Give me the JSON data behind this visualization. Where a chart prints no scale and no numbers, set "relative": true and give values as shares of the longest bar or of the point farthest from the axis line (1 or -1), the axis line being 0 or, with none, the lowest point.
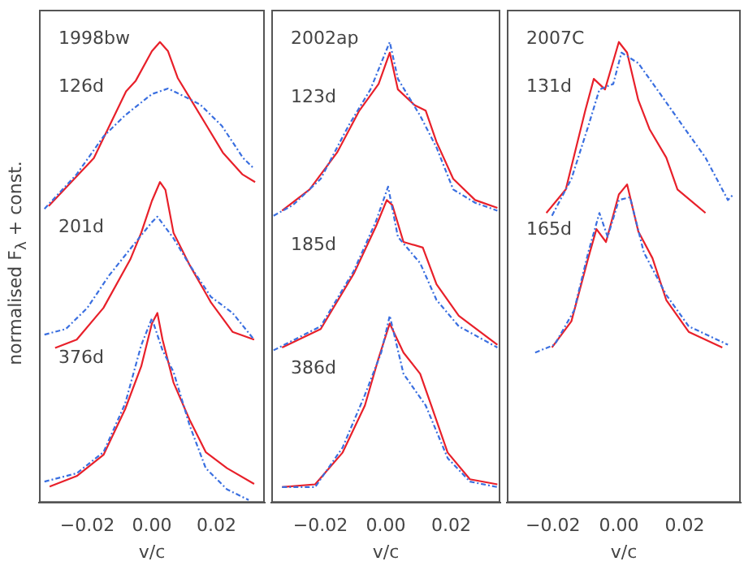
{
  "chart_data": [
    {
      "type": "line",
      "relative": true,
      "ylabel": "normalised F$_{λ}$ + const.",
      "xlabel": "v/c",
      "xlim": [
        -0.035,
        0.035
      ],
      "xticks": [
        {
          "value": -0.02,
          "label": "−0.02"
        },
        {
          "value": 0,
          "label": "0.00"
        },
        {
          "value": 0.02,
          "label": "0.02"
        }
      ],
      "grid": false,
      "legend": false,
      "marker": "none",
      "annotations": [
        "1998bw",
        "126d",
        "201d",
        "376d"
      ],
      "series": [
        {
          "color": "#e8202a",
          "line_style": "solid",
          "x": [
            -0.032,
            -0.018,
            -0.008,
            -0.005,
            0,
            0.0025,
            0.005,
            0.008,
            0.012,
            0.017,
            0.022,
            0.028,
            0.032
          ],
          "values": [
            0.644,
            0.748,
            0.893,
            0.916,
            0.98,
            1.0,
            0.98,
            0.922,
            0.876,
            0.818,
            0.76,
            0.713,
            0.696
          ]
        },
        {
          "color": "#3a6fe0",
          "line_style": "dashdot",
          "x": [
            -0.0333,
            -0.0233,
            -0.015,
            -0.0083,
            0,
            0.005,
            0.01,
            0.015,
            0.0217,
            0.0283,
            0.0317
          ],
          "values": [
            0.638,
            0.713,
            0.795,
            0.841,
            0.887,
            0.899,
            0.882,
            0.864,
            0.818,
            0.748,
            0.725
          ]
        },
        {
          "color": "#e8202a",
          "line_style": "solid",
          "x": [
            -0.03,
            -0.0233,
            -0.015,
            -0.0067,
            -0.0033,
            0,
            0.0025,
            0.0042,
            0.0067,
            0.0117,
            0.0183,
            0.025,
            0.0317
          ],
          "values": [
            0.336,
            0.354,
            0.423,
            0.528,
            0.586,
            0.655,
            0.696,
            0.679,
            0.586,
            0.516,
            0.435,
            0.371,
            0.354
          ]
        },
        {
          "color": "#3a6fe0",
          "line_style": "dashdot",
          "x": [
            -0.0333,
            -0.0267,
            -0.02,
            -0.0133,
            -0.0067,
            0,
            0.0017,
            0.0067,
            0.0117,
            0.0183,
            0.025,
            0.0317
          ],
          "values": [
            0.365,
            0.377,
            0.423,
            0.493,
            0.551,
            0.609,
            0.621,
            0.574,
            0.516,
            0.447,
            0.412,
            0.354
          ]
        },
        {
          "color": "#e8202a",
          "line_style": "solid",
          "x": [
            -0.0317,
            -0.0233,
            -0.015,
            -0.0083,
            -0.0033,
            0,
            0.0017,
            0.0033,
            0.0067,
            0.0117,
            0.0167,
            0.0233,
            0.0317
          ],
          "values": [
            0.035,
            0.058,
            0.104,
            0.203,
            0.296,
            0.389,
            0.412,
            0.354,
            0.261,
            0.18,
            0.11,
            0.075,
            0.041
          ]
        },
        {
          "color": "#3a6fe0",
          "line_style": "dashdot",
          "x": [
            -0.0333,
            -0.0233,
            -0.015,
            -0.0083,
            -0.0033,
            0,
            0.0033,
            0.0067,
            0.0117,
            0.0167,
            0.0233,
            0.03
          ],
          "values": [
            0.046,
            0.064,
            0.11,
            0.215,
            0.342,
            0.4,
            0.331,
            0.284,
            0.168,
            0.075,
            0.029,
            0.006
          ]
        }
      ]
    },
    {
      "type": "line",
      "relative": true,
      "xlabel": "v/c",
      "xlim": [
        -0.035,
        0.035
      ],
      "xticks": [
        {
          "value": -0.02,
          "label": "−0.02"
        },
        {
          "value": 0,
          "label": "0.00"
        },
        {
          "value": 0.02,
          "label": "0.02"
        }
      ],
      "grid": false,
      "legend": false,
      "marker": "none",
      "annotations": [
        "2002ap",
        "123d",
        "185d",
        "386d"
      ],
      "series": [
        {
          "color": "#e8202a",
          "line_style": "solid",
          "x": [
            -0.0317,
            -0.0233,
            -0.0149,
            -0.0081,
            -0.0022,
            0.0012,
            0.0037,
            0.0088,
            0.0122,
            0.0155,
            0.0206,
            0.0273,
            0.0341
          ],
          "values": [
            0.634,
            0.68,
            0.76,
            0.851,
            0.909,
            0.977,
            0.897,
            0.863,
            0.851,
            0.783,
            0.703,
            0.657,
            0.64
          ]
        },
        {
          "color": "#3a6fe0",
          "line_style": "dashdot",
          "x": [
            -0.0343,
            -0.0284,
            -0.0199,
            -0.0115,
            -0.0047,
            0.0012,
            0.0037,
            0.0105,
            0.0155,
            0.0206,
            0.0273,
            0.0341
          ],
          "values": [
            0.623,
            0.646,
            0.703,
            0.817,
            0.897,
            1.0,
            0.92,
            0.84,
            0.771,
            0.68,
            0.651,
            0.634
          ]
        },
        {
          "color": "#e8202a",
          "line_style": "solid",
          "x": [
            -0.0317,
            -0.0199,
            -0.0098,
            -0.003,
            0.0003,
            0.002,
            0.0054,
            0.0113,
            0.0155,
            0.0223,
            0.0341
          ],
          "values": [
            0.337,
            0.377,
            0.497,
            0.6,
            0.657,
            0.646,
            0.566,
            0.554,
            0.474,
            0.406,
            0.343
          ]
        },
        {
          "color": "#3a6fe0",
          "line_style": "dashdot",
          "x": [
            -0.0343,
            -0.0199,
            -0.0098,
            -0.003,
            0.0007,
            0.0037,
            0.0105,
            0.0155,
            0.0223,
            0.0341
          ],
          "values": [
            0.331,
            0.383,
            0.503,
            0.611,
            0.686,
            0.577,
            0.52,
            0.44,
            0.383,
            0.337
          ]
        },
        {
          "color": "#e8202a",
          "line_style": "solid",
          "x": [
            -0.0317,
            -0.0216,
            -0.0132,
            -0.0064,
            -0.0022,
            0.0012,
            0.0054,
            0.0105,
            0.0139,
            0.0189,
            0.0257,
            0.0341
          ],
          "values": [
            0.034,
            0.04,
            0.109,
            0.211,
            0.314,
            0.389,
            0.326,
            0.28,
            0.211,
            0.109,
            0.051,
            0.04
          ]
        },
        {
          "color": "#3a6fe0",
          "line_style": "dashdot",
          "x": [
            -0.0317,
            -0.0216,
            -0.0132,
            -0.0064,
            -0.0014,
            0.0012,
            0.0054,
            0.0122,
            0.0189,
            0.0257,
            0.0341
          ],
          "values": [
            0.034,
            0.034,
            0.12,
            0.234,
            0.326,
            0.406,
            0.28,
            0.211,
            0.097,
            0.046,
            0.034
          ]
        }
      ]
    },
    {
      "type": "line",
      "relative": true,
      "xlabel": "v/c",
      "xlim": [
        -0.034,
        0.037
      ],
      "xticks": [
        {
          "value": -0.02,
          "label": "−0.02"
        },
        {
          "value": 0,
          "label": "0.00"
        },
        {
          "value": 0.02,
          "label": "0.02"
        }
      ],
      "grid": false,
      "legend": false,
      "marker": "none",
      "annotations": [
        "2007C",
        "131d",
        "165d"
      ],
      "series": [
        {
          "color": "#e8202a",
          "line_style": "solid",
          "x": [
            -0.022,
            -0.0161,
            -0.0102,
            -0.0076,
            -0.0042,
            0,
            0.0025,
            0.0059,
            0.0093,
            0.0144,
            0.0178,
            0.0263
          ],
          "values": [
            0.629,
            0.68,
            0.851,
            0.92,
            0.897,
            1.0,
            0.977,
            0.874,
            0.811,
            0.749,
            0.68,
            0.629
          ]
        },
        {
          "color": "#3a6fe0",
          "line_style": "dashdot",
          "x": [
            -0.0203,
            -0.0144,
            -0.0093,
            -0.0059,
            -0.0017,
            0.0008,
            0.0059,
            0.0127,
            0.0195,
            0.0263,
            0.0331,
            0.0347
          ],
          "values": [
            0.623,
            0.703,
            0.817,
            0.897,
            0.909,
            0.977,
            0.954,
            0.886,
            0.817,
            0.749,
            0.657,
            0.669
          ]
        },
        {
          "color": "#e8202a",
          "line_style": "solid",
          "x": [
            -0.0203,
            -0.0144,
            -0.0093,
            -0.0068,
            -0.0039,
            0,
            0.0025,
            0.0059,
            0.0102,
            0.0144,
            0.0212,
            0.0314
          ],
          "values": [
            0.337,
            0.394,
            0.531,
            0.594,
            0.566,
            0.669,
            0.691,
            0.589,
            0.531,
            0.44,
            0.371,
            0.337
          ]
        },
        {
          "color": "#3a6fe0",
          "line_style": "dashdot",
          "x": [
            -0.0254,
            -0.0195,
            -0.0136,
            -0.0093,
            -0.0059,
            -0.0034,
            0,
            0.0034,
            0.0076,
            0.0144,
            0.0212,
            0.0331
          ],
          "values": [
            0.326,
            0.343,
            0.417,
            0.543,
            0.629,
            0.577,
            0.657,
            0.663,
            0.543,
            0.451,
            0.383,
            0.343
          ]
        }
      ]
    }
  ]
}
